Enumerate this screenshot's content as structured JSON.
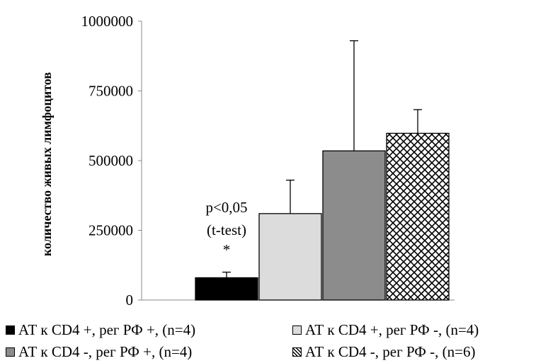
{
  "chart_data": {
    "type": "bar",
    "title": "",
    "xlabel": "",
    "ylabel": "количество живых лимфоцитов",
    "ylim": [
      0,
      1000000
    ],
    "yticks": [
      "0",
      "250000",
      "500000",
      "750000",
      "1000000"
    ],
    "grid": false,
    "legend_position": "bottom",
    "series": [
      {
        "name": "АТ к CD4 +, рег РФ +, (n=4)",
        "value": 80000,
        "error": 20000,
        "fill": "#000000",
        "pattern": "solid"
      },
      {
        "name": "АТ к CD4 +, рег РФ -, (n=4)",
        "value": 310000,
        "error": 120000,
        "fill": "#dcdcdc",
        "pattern": "solid"
      },
      {
        "name": "АТ к CD4 -, рег РФ +, (n=4)",
        "value": 535000,
        "error": 395000,
        "fill": "#8c8c8c",
        "pattern": "solid"
      },
      {
        "name": "АТ к CD4 -, рег РФ -, (n=6)",
        "value": 598000,
        "error": 85000,
        "fill": "#ffffff",
        "pattern": "lattice"
      }
    ],
    "annotations": [
      {
        "text": "p<0,05",
        "series_index": 0
      },
      {
        "text": "(t-test)",
        "series_index": 0
      },
      {
        "text": "*",
        "series_index": 0
      }
    ]
  }
}
